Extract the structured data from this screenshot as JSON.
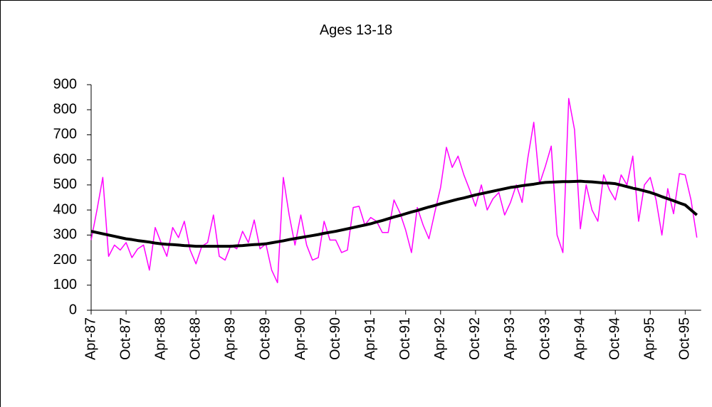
{
  "chart_data": {
    "type": "line",
    "title": "Ages 13-18",
    "categories": [
      "Apr-87",
      null,
      null,
      null,
      null,
      null,
      "Oct-87",
      null,
      null,
      null,
      null,
      null,
      "Apr-88",
      null,
      null,
      null,
      null,
      null,
      "Oct-88",
      null,
      null,
      null,
      null,
      null,
      "Apr-89",
      null,
      null,
      null,
      null,
      null,
      "Oct-89",
      null,
      null,
      null,
      null,
      null,
      "Apr-90",
      null,
      null,
      null,
      null,
      null,
      "Oct-90",
      null,
      null,
      null,
      null,
      null,
      "Apr-91",
      null,
      null,
      null,
      null,
      null,
      "Oct-91",
      null,
      null,
      null,
      null,
      null,
      "Apr-92",
      null,
      null,
      null,
      null,
      null,
      "Oct-92",
      null,
      null,
      null,
      null,
      null,
      "Apr-93",
      null,
      null,
      null,
      null,
      null,
      "Oct-93",
      null,
      null,
      null,
      null,
      null,
      "Apr-94",
      null,
      null,
      null,
      null,
      null,
      "Oct-94",
      null,
      null,
      null,
      null,
      null,
      "Apr-95",
      null,
      null,
      null,
      null,
      null,
      "Oct-95",
      null,
      null
    ],
    "series": [
      {
        "color": "#ff00ff",
        "width": 1.5,
        "values": [
          280,
          400,
          530,
          215,
          260,
          240,
          270,
          210,
          245,
          260,
          160,
          330,
          270,
          215,
          330,
          290,
          355,
          240,
          185,
          255,
          270,
          380,
          215,
          200,
          260,
          245,
          315,
          270,
          360,
          245,
          265,
          160,
          110,
          530,
          380,
          260,
          380,
          260,
          200,
          210,
          355,
          280,
          280,
          230,
          240,
          410,
          415,
          340,
          370,
          355,
          310,
          310,
          440,
          390,
          320,
          230,
          410,
          340,
          285,
          390,
          490,
          650,
          570,
          615,
          540,
          480,
          415,
          500,
          400,
          445,
          470,
          380,
          430,
          500,
          430,
          610,
          750,
          505,
          575,
          655,
          300,
          230,
          845,
          720,
          325,
          500,
          400,
          355,
          540,
          480,
          440,
          540,
          500,
          615,
          355,
          500,
          530,
          440,
          300,
          485,
          385,
          545,
          540,
          440,
          290
        ]
      },
      {
        "color": "#000000",
        "width": 4,
        "values": [
          315,
          310,
          305,
          300,
          295,
          290,
          285,
          282,
          278,
          275,
          272,
          268,
          265,
          263,
          262,
          260,
          258,
          257,
          255,
          255,
          255,
          255,
          255,
          255,
          255,
          257,
          258,
          260,
          262,
          263,
          265,
          269,
          273,
          277,
          282,
          286,
          290,
          294,
          298,
          302,
          307,
          311,
          315,
          320,
          325,
          330,
          335,
          340,
          345,
          352,
          358,
          365,
          372,
          378,
          385,
          392,
          398,
          405,
          412,
          418,
          425,
          431,
          437,
          443,
          448,
          454,
          460,
          465,
          470,
          475,
          480,
          485,
          490,
          493,
          497,
          500,
          503,
          507,
          510,
          511,
          512,
          513,
          513,
          514,
          515,
          513,
          512,
          510,
          508,
          507,
          505,
          499,
          493,
          487,
          482,
          476,
          470,
          462,
          453,
          445,
          437,
          428,
          420,
          400,
          380
        ]
      }
    ],
    "ylim": [
      0,
      900
    ],
    "yticks": [
      0,
      100,
      200,
      300,
      400,
      500,
      600,
      700,
      800,
      900
    ]
  }
}
